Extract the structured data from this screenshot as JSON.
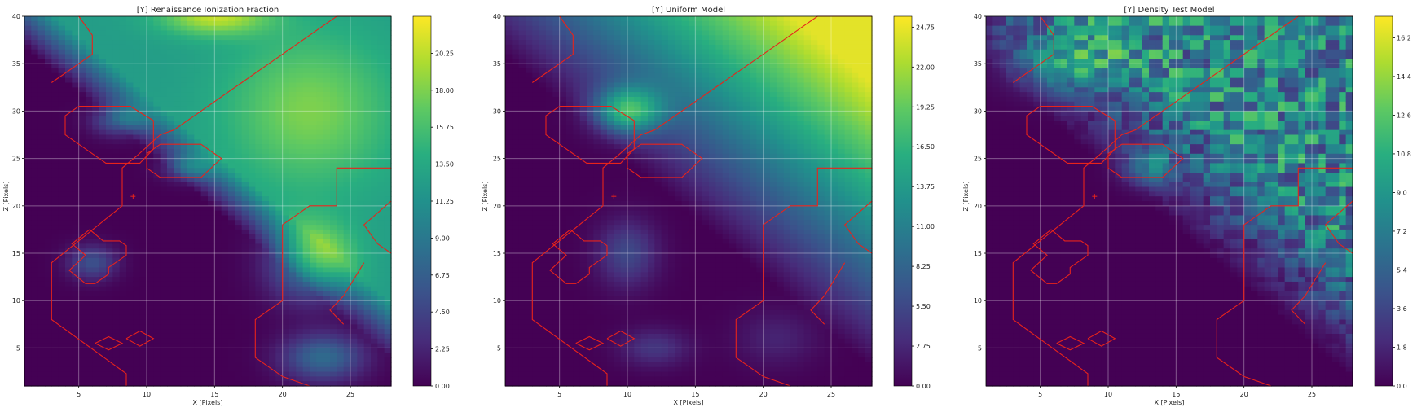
{
  "figure": {
    "background": "#ffffff"
  },
  "chart_data": [
    {
      "type": "heatmap",
      "title": "[Y] Renaissance Ionization Fraction",
      "xlabel": "X [Pixels]",
      "ylabel": "Z [Pixels]",
      "xlim": [
        1,
        28
      ],
      "ylim": [
        1,
        40
      ],
      "x_ticks": [
        "5",
        "10",
        "15",
        "20",
        "25"
      ],
      "y_ticks": [
        "5",
        "10",
        "15",
        "20",
        "25",
        "30",
        "35",
        "40"
      ],
      "colorbar_ticks": [
        "0.00",
        "2.25",
        "4.50",
        "6.75",
        "9.00",
        "11.25",
        "13.50",
        "15.75",
        "18.00",
        "20.25"
      ],
      "colorbar_range": [
        0,
        22.5
      ],
      "colormap": "viridis",
      "grid": true,
      "contour_color": "#e8231b",
      "marker": {
        "x": 9.0,
        "y": 21.0,
        "symbol": "+"
      },
      "pattern": "ionization"
    },
    {
      "type": "heatmap",
      "title": "[Y] Uniform Model",
      "xlabel": "X [Pixels]",
      "ylabel": "Z [Pixels]",
      "xlim": [
        1,
        28
      ],
      "ylim": [
        1,
        40
      ],
      "x_ticks": [
        "5",
        "10",
        "15",
        "20",
        "25"
      ],
      "y_ticks": [
        "5",
        "10",
        "15",
        "20",
        "25",
        "30",
        "35",
        "40"
      ],
      "colorbar_ticks": [
        "0.00",
        "2.75",
        "5.50",
        "8.25",
        "11.00",
        "13.75",
        "16.50",
        "19.25",
        "22.00",
        "24.75"
      ],
      "colorbar_range": [
        0,
        25.5
      ],
      "colormap": "viridis",
      "grid": true,
      "contour_color": "#e8231b",
      "marker": {
        "x": 9.0,
        "y": 21.0,
        "symbol": "+"
      },
      "pattern": "uniform"
    },
    {
      "type": "heatmap",
      "title": "[Y] Density Test Model",
      "xlabel": "X [Pixels]",
      "ylabel": "Z [Pixels]",
      "xlim": [
        1,
        28
      ],
      "ylim": [
        1,
        40
      ],
      "x_ticks": [
        "5",
        "10",
        "15",
        "20",
        "25"
      ],
      "y_ticks": [
        "5",
        "10",
        "15",
        "20",
        "25",
        "30",
        "35",
        "40"
      ],
      "colorbar_ticks": [
        "0.0",
        "1.8",
        "3.6",
        "5.4",
        "7.2",
        "9.0",
        "10.8",
        "12.6",
        "14.4",
        "16.2"
      ],
      "colorbar_range": [
        0,
        17.2
      ],
      "colormap": "viridis",
      "grid": true,
      "contour_color": "#e8231b",
      "marker": {
        "x": 9.0,
        "y": 21.0,
        "symbol": "+"
      },
      "pattern": "density"
    }
  ],
  "contours": [
    [
      [
        8.5,
        1
      ],
      [
        8.5,
        2.3
      ],
      [
        3,
        8
      ],
      [
        3,
        14
      ],
      [
        8.2,
        20
      ],
      [
        8.2,
        24
      ],
      [
        9.3,
        25.3
      ],
      [
        11,
        27.5
      ],
      [
        12,
        28
      ],
      [
        13,
        29
      ],
      [
        14,
        30
      ],
      [
        15,
        31
      ],
      [
        16,
        32
      ],
      [
        17,
        33
      ],
      [
        18,
        34
      ],
      [
        19,
        35
      ],
      [
        20,
        36
      ],
      [
        21,
        37
      ],
      [
        22,
        38
      ],
      [
        23,
        39
      ],
      [
        24,
        40
      ],
      [
        28,
        40
      ]
    ],
    [
      [
        3,
        33
      ],
      [
        6,
        36
      ],
      [
        6,
        38
      ],
      [
        5,
        40
      ]
    ],
    [
      [
        28,
        24
      ],
      [
        24,
        24
      ],
      [
        24,
        20
      ],
      [
        22,
        20
      ],
      [
        20,
        18
      ],
      [
        20,
        10
      ],
      [
        18,
        8
      ],
      [
        18,
        4
      ],
      [
        20,
        2
      ],
      [
        22,
        0
      ]
    ],
    [
      [
        28,
        20.5
      ],
      [
        26,
        18
      ],
      [
        27,
        16
      ],
      [
        28,
        15
      ]
    ],
    [
      [
        26,
        14
      ],
      [
        24.5,
        10.5
      ],
      [
        23.5,
        9
      ],
      [
        24.5,
        7.5
      ]
    ],
    [
      [
        5,
        30.5
      ],
      [
        8.8,
        30.5
      ],
      [
        10.5,
        29
      ],
      [
        10.5,
        26
      ],
      [
        9.5,
        24.5
      ],
      [
        7,
        24.5
      ],
      [
        4,
        27.5
      ],
      [
        4,
        29.5
      ],
      [
        5,
        30.5
      ]
    ],
    [
      [
        11,
        26.5
      ],
      [
        14,
        26.5
      ],
      [
        15.5,
        25
      ],
      [
        14,
        23
      ],
      [
        11,
        23
      ],
      [
        10,
        24
      ],
      [
        10,
        25.5
      ],
      [
        11,
        26.5
      ]
    ],
    [
      [
        5.8,
        17.5
      ],
      [
        6.8,
        16.3
      ],
      [
        8,
        16.3
      ],
      [
        8.5,
        15.8
      ],
      [
        8.5,
        14.8
      ],
      [
        7.2,
        13.5
      ],
      [
        7.2,
        12.8
      ],
      [
        6.2,
        11.8
      ],
      [
        5.5,
        11.8
      ],
      [
        4.3,
        13.2
      ],
      [
        5.5,
        14.8
      ],
      [
        4.5,
        16
      ],
      [
        5.8,
        17.5
      ]
    ],
    [
      [
        6.2,
        5.5
      ],
      [
        7.2,
        6.2
      ],
      [
        8.2,
        5.5
      ],
      [
        7.2,
        4.8
      ],
      [
        6.2,
        5.5
      ]
    ],
    [
      [
        8.5,
        6
      ],
      [
        9.5,
        6.8
      ],
      [
        10.5,
        6
      ],
      [
        9.5,
        5.2
      ],
      [
        8.5,
        6
      ]
    ]
  ]
}
